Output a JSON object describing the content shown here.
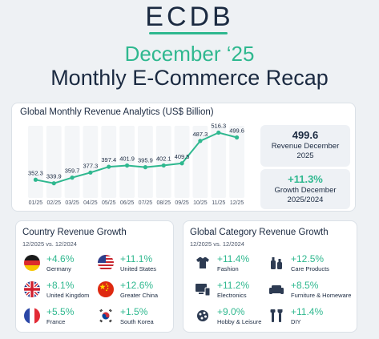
{
  "header": {
    "logo": "ECDB",
    "month": "December ‘25",
    "subtitle": "Monthly E-Commerce Recap"
  },
  "colors": {
    "accent": "#2fb88f",
    "text": "#1b2a41"
  },
  "chart_data": {
    "type": "line",
    "title": "Global Monthly Revenue Analytics (US$ Billion)",
    "categories": [
      "01/25",
      "02/25",
      "03/25",
      "04/25",
      "05/25",
      "06/25",
      "07/25",
      "08/25",
      "09/25",
      "10/25",
      "11/25",
      "12/25"
    ],
    "values": [
      352.3,
      339.9,
      359.7,
      377.3,
      397.4,
      401.9,
      395.9,
      402.1,
      409.5,
      487.3,
      516.3,
      499.6
    ],
    "labels": [
      "352.3",
      "339.9",
      "359.7",
      "377.3",
      "397.4",
      "401.9",
      "395.9",
      "402.1",
      "409.5",
      "487.3",
      "516.3",
      "499.6"
    ],
    "ylim": [
      300,
      540
    ],
    "grid": true,
    "legend": "none"
  },
  "stats": {
    "revenue_value": "499.6",
    "revenue_label_1": "Revenue December",
    "revenue_label_2": "2025",
    "growth_value": "+11.3%",
    "growth_label_1": "Growth December",
    "growth_label_2": "2025/2024"
  },
  "country": {
    "title": "Country Revenue Growth",
    "period": "12/2025 vs. 12/2024",
    "items": [
      {
        "value": "+4.6%",
        "name": "Germany",
        "flag": "germany-flag-icon"
      },
      {
        "value": "+11.1%",
        "name": "United States",
        "flag": "usa-flag-icon"
      },
      {
        "value": "+8.1%",
        "name": "United Kingdom",
        "flag": "uk-flag-icon"
      },
      {
        "value": "+12.6%",
        "name": "Greater China",
        "flag": "china-flag-icon"
      },
      {
        "value": "+5.5%",
        "name": "France",
        "flag": "france-flag-icon"
      },
      {
        "value": "+1.5%",
        "name": "South Korea",
        "flag": "south-korea-flag-icon"
      }
    ]
  },
  "category": {
    "title": "Global Category Revenue Growth",
    "period": "12/2025 vs. 12/2024",
    "items": [
      {
        "value": "+11.4%",
        "name": "Fashion",
        "icon": "tshirt-icon"
      },
      {
        "value": "+12.5%",
        "name": "Care Products",
        "icon": "bottles-icon"
      },
      {
        "value": "+11.2%",
        "name": "Electronics",
        "icon": "devices-icon"
      },
      {
        "value": "+8.5%",
        "name": "Furniture & Homeware",
        "icon": "sofa-icon"
      },
      {
        "value": "+9.0%",
        "name": "Hobby & Leisure",
        "icon": "hobby-icon"
      },
      {
        "value": "+11.4%",
        "name": "DIY",
        "icon": "tools-icon"
      }
    ]
  }
}
